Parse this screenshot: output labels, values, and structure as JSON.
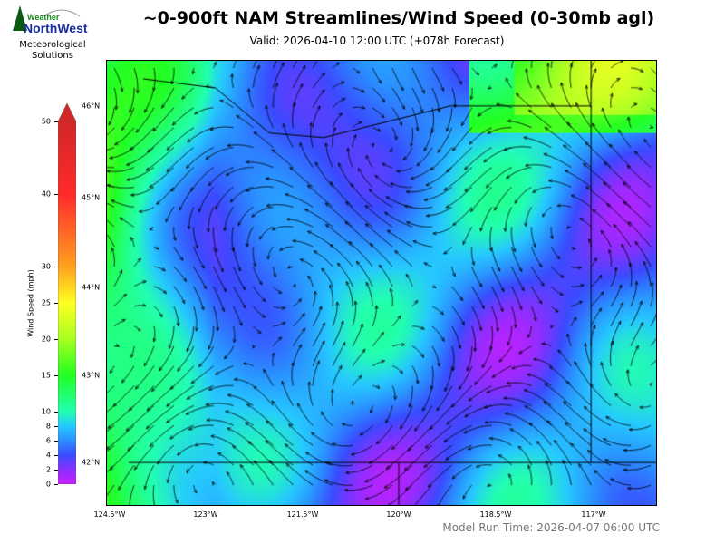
{
  "header": {
    "title": "~0-900ft NAM Streamlines/Wind Speed (0-30mb agl)",
    "valid": "Valid: 2026-04-10 12:00 UTC  (+078h Forecast)"
  },
  "logo": {
    "text_top": "Weather",
    "text_main": "NorthWest",
    "subtitle": "Meteorological Solutions"
  },
  "colorbar": {
    "label": "Wind Speed (mph)",
    "ticks": [
      "0",
      "2",
      "4",
      "6",
      "8",
      "10",
      "15",
      "20",
      "25",
      "30",
      "40",
      "50"
    ],
    "extend": "max",
    "colors": [
      "#c71fff",
      "#8a2fff",
      "#3a4bff",
      "#2a8fff",
      "#26c8ff",
      "#22ffb0",
      "#22ff22",
      "#a8ff22",
      "#ffff22",
      "#ffa020",
      "#ff2a2a",
      "#d02828"
    ]
  },
  "map": {
    "lat_labels": [
      "46°N",
      "45°N",
      "44°N",
      "43°N",
      "42°N"
    ],
    "lon_labels": [
      "124.5°W",
      "123°W",
      "121.5°W",
      "120°W",
      "118.5°W",
      "117°W"
    ]
  },
  "footer": {
    "model_run": "Model Run Time: 2026-04-07 06:00 UTC"
  }
}
